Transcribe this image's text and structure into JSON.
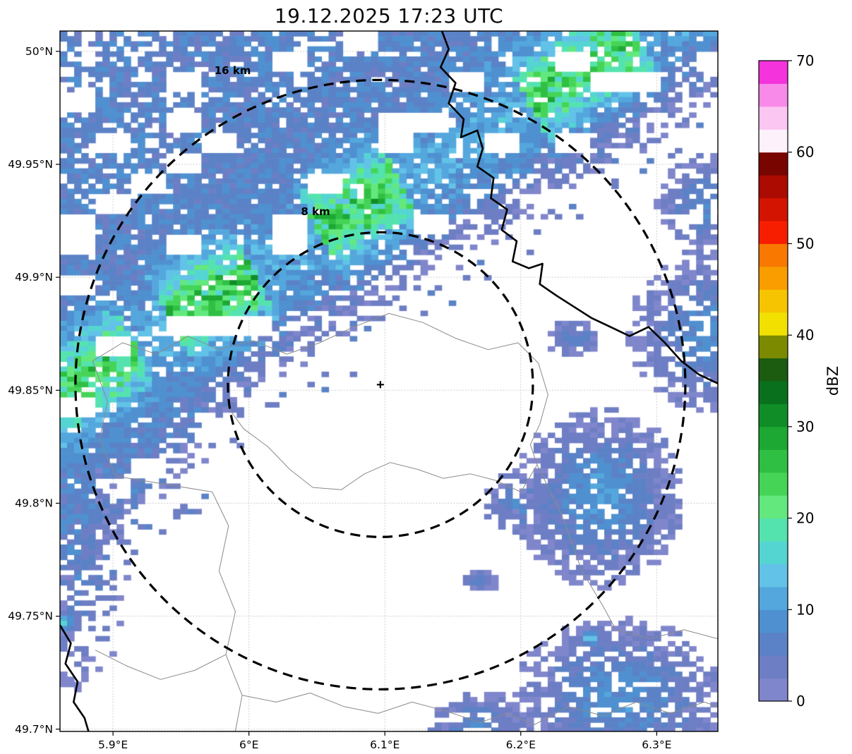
{
  "chart_data": {
    "type": "heatmap",
    "title": "19.12.2025 17:23 UTC",
    "quantity": "radar reflectivity",
    "x_axis": {
      "range": [
        5.861,
        6.345
      ],
      "ticks": [
        {
          "value": 5.9,
          "label": "5.9°E"
        },
        {
          "value": 6.0,
          "label": "6°E"
        },
        {
          "value": 6.1,
          "label": "6.1°E"
        },
        {
          "value": 6.2,
          "label": "6.2°E"
        },
        {
          "value": 6.3,
          "label": "6.3°E"
        }
      ]
    },
    "y_axis": {
      "range": [
        49.699,
        50.009
      ],
      "ticks": [
        {
          "value": 50.0,
          "label": "50°N"
        },
        {
          "value": 49.95,
          "label": "49.95°N"
        },
        {
          "value": 49.9,
          "label": "49.9°N"
        },
        {
          "value": 49.85,
          "label": "49.85°N"
        },
        {
          "value": 49.8,
          "label": "49.8°N"
        },
        {
          "value": 49.75,
          "label": "49.75°N"
        },
        {
          "value": 49.7,
          "label": "49.7°N"
        }
      ]
    },
    "colorbar": {
      "label": "dBZ",
      "range": [
        0,
        70
      ],
      "tick_values": [
        0,
        10,
        20,
        30,
        40,
        50,
        60,
        70
      ],
      "level_step": 2.5,
      "colors": [
        "#8086cb",
        "#6e7ec4",
        "#5b82c6",
        "#4f90d0",
        "#54a7dd",
        "#62c2e7",
        "#55d5d2",
        "#54e3af",
        "#63e87d",
        "#46d457",
        "#2fc043",
        "#1ca833",
        "#108d27",
        "#09711d",
        "#1b5c10",
        "#7c8a00",
        "#f2e100",
        "#f6c400",
        "#f99d00",
        "#f87800",
        "#f71e00",
        "#d31400",
        "#ab0b00",
        "#790500",
        "#fdf1fb",
        "#fbc6f2",
        "#f88ae9",
        "#f433dd"
      ]
    },
    "center_marker": {
      "lon": 6.0967,
      "lat": 49.8525,
      "symbol": "+"
    },
    "range_rings": [
      {
        "radius_km": 8,
        "label": "8 km",
        "label_lonlat": [
          6.049,
          49.9275
        ]
      },
      {
        "radius_km": 16,
        "label": "16 km",
        "label_lonlat": [
          5.988,
          49.99
        ]
      }
    ],
    "field": {
      "cell_dlon": 0.0052,
      "cell_dlat": 0.00225,
      "band": {
        "core_from": [
          5.87,
          49.852
        ],
        "core_to": [
          6.27,
          50.002
        ],
        "base_dbz": 6.5,
        "se_width_base": 0.044,
        "se_width_extra": 0.04,
        "se_width_lon_ref": 6.02,
        "se_width_lon_scale": 0.16,
        "ridge_sigma": 0.013,
        "ridge_amp_default": 5,
        "ridge_hot": [
          [
            -0.03,
            0.035,
            16
          ],
          [
            0.055,
            0.1,
            18
          ],
          [
            0.135,
            0.18,
            17
          ],
          [
            0.25,
            0.31,
            16
          ]
        ],
        "noise_dbz": 5,
        "hole_base": 0.1,
        "hole_nw": 0.27,
        "hole_far_nw": 0.5,
        "hole_edge": 0.35,
        "block_hole_p": 0.12
      },
      "blobs": [
        {
          "c": [
            6.34,
            49.876
          ],
          "sx": 0.02,
          "sy": 0.018,
          "amp": 8.5,
          "cov": 0.7
        },
        {
          "c": [
            6.335,
            49.932
          ],
          "sx": 0.012,
          "sy": 0.012,
          "amp": 7.5,
          "cov": 0.6
        },
        {
          "c": [
            6.258,
            49.803
          ],
          "sx": 0.02,
          "sy": 0.02,
          "amp": 9.5,
          "cov": 0.8
        },
        {
          "c": [
            6.2,
            49.8
          ],
          "sx": 0.01,
          "sy": 0.008,
          "amp": 6.5,
          "cov": 0.7
        },
        {
          "c": [
            6.272,
            49.714
          ],
          "sx": 0.025,
          "sy": 0.018,
          "amp": 9.0,
          "cov": 0.75
        },
        {
          "c": [
            6.17,
            49.7
          ],
          "sx": 0.013,
          "sy": 0.009,
          "amp": 7.5,
          "cov": 0.75
        },
        {
          "c": [
            6.238,
            49.8735
          ],
          "sx": 0.007,
          "sy": 0.0045,
          "amp": 6.5,
          "cov": 0.95
        },
        {
          "c": [
            6.171,
            49.7655
          ],
          "sx": 0.005,
          "sy": 0.0025,
          "amp": 6.0,
          "cov": 1
        },
        {
          "c": [
            5.872,
            49.772
          ],
          "sx": 0.014,
          "sy": 0.03,
          "amp": 6.5,
          "cov": 0.4
        },
        {
          "c": [
            6.2515,
            49.7405
          ],
          "sx": 0.0032,
          "sy": 0.0022,
          "amp": 16,
          "cov": 1
        },
        {
          "c": [
            5.8635,
            49.7475
          ],
          "sx": 0.004,
          "sy": 0.0028,
          "amp": 15,
          "cov": 1
        }
      ]
    },
    "map_layers": {
      "country_borders": [
        [
          [
            6.142,
            50.009
          ],
          [
            6.147,
            50.001
          ],
          [
            6.141,
            49.993
          ],
          [
            6.152,
            49.986
          ],
          [
            6.147,
            49.977
          ],
          [
            6.158,
            49.97
          ],
          [
            6.156,
            49.962
          ],
          [
            6.168,
            49.965
          ],
          [
            6.172,
            49.957
          ],
          [
            6.168,
            49.949
          ],
          [
            6.18,
            49.944
          ],
          [
            6.178,
            49.935
          ],
          [
            6.19,
            49.93
          ],
          [
            6.186,
            49.921
          ],
          [
            6.197,
            49.916
          ],
          [
            6.194,
            49.907
          ],
          [
            6.206,
            49.904
          ],
          [
            6.216,
            49.906
          ],
          [
            6.214,
            49.897
          ],
          [
            6.226,
            49.892
          ],
          [
            6.239,
            49.887
          ],
          [
            6.252,
            49.882
          ],
          [
            6.266,
            49.878
          ],
          [
            6.28,
            49.874
          ],
          [
            6.294,
            49.878
          ],
          [
            6.306,
            49.871
          ],
          [
            6.318,
            49.863
          ],
          [
            6.331,
            49.857
          ],
          [
            6.345,
            49.853
          ]
        ],
        [
          [
            5.861,
            49.746
          ],
          [
            5.869,
            49.738
          ],
          [
            5.865,
            49.729
          ],
          [
            5.874,
            49.721
          ],
          [
            5.871,
            49.712
          ],
          [
            5.879,
            49.705
          ],
          [
            5.882,
            49.699
          ]
        ]
      ],
      "internal_borders": [
        [
          [
            5.885,
            49.863
          ],
          [
            5.907,
            49.871
          ],
          [
            5.932,
            49.866
          ],
          [
            5.955,
            49.874
          ],
          [
            5.978,
            49.868
          ],
          [
            6.003,
            49.872
          ],
          [
            6.028,
            49.866
          ],
          [
            6.052,
            49.871
          ],
          [
            6.077,
            49.878
          ],
          [
            6.103,
            49.884
          ],
          [
            6.128,
            49.88
          ],
          [
            6.152,
            49.873
          ],
          [
            6.176,
            49.868
          ],
          [
            6.198,
            49.871
          ],
          [
            6.213,
            49.862
          ],
          [
            6.22,
            49.848
          ],
          [
            6.214,
            49.835
          ],
          [
            6.207,
            49.826
          ],
          [
            6.212,
            49.817
          ]
        ],
        [
          [
            5.984,
            49.843
          ],
          [
            5.996,
            49.833
          ],
          [
            6.014,
            49.825
          ],
          [
            6.03,
            49.815
          ],
          [
            6.047,
            49.807
          ],
          [
            6.068,
            49.806
          ],
          [
            6.085,
            49.813
          ],
          [
            6.104,
            49.818
          ],
          [
            6.124,
            49.815
          ],
          [
            6.143,
            49.811
          ],
          [
            6.163,
            49.813
          ],
          [
            6.182,
            49.81
          ],
          [
            6.2,
            49.805
          ],
          [
            6.212,
            49.817
          ]
        ],
        [
          [
            5.973,
            49.805
          ],
          [
            5.985,
            49.79
          ],
          [
            5.978,
            49.77
          ],
          [
            5.99,
            49.752
          ],
          [
            5.983,
            49.733
          ],
          [
            5.995,
            49.715
          ],
          [
            5.99,
            49.699
          ]
        ],
        [
          [
            5.887,
            49.735
          ],
          [
            5.91,
            49.728
          ],
          [
            5.935,
            49.722
          ],
          [
            5.96,
            49.726
          ],
          [
            5.983,
            49.733
          ]
        ],
        [
          [
            5.995,
            49.715
          ],
          [
            6.02,
            49.712
          ],
          [
            6.045,
            49.716
          ],
          [
            6.07,
            49.71
          ],
          [
            6.095,
            49.707
          ],
          [
            6.12,
            49.712
          ],
          [
            6.145,
            49.708
          ],
          [
            6.17,
            49.703
          ],
          [
            6.19,
            49.707
          ],
          [
            6.21,
            49.702
          ],
          [
            6.235,
            49.71
          ],
          [
            6.26,
            49.706
          ],
          [
            6.285,
            49.712
          ],
          [
            6.31,
            49.707
          ],
          [
            6.335,
            49.712
          ],
          [
            6.345,
            49.71
          ]
        ],
        [
          [
            6.212,
            49.817
          ],
          [
            6.23,
            49.795
          ],
          [
            6.245,
            49.77
          ],
          [
            6.26,
            49.755
          ],
          [
            6.27,
            49.744
          ],
          [
            6.295,
            49.74
          ],
          [
            6.32,
            49.744
          ],
          [
            6.345,
            49.74
          ]
        ],
        [
          [
            5.885,
            49.863
          ],
          [
            5.896,
            49.845
          ],
          [
            5.89,
            49.828
          ],
          [
            5.902,
            49.812
          ],
          [
            5.973,
            49.805
          ]
        ]
      ]
    }
  }
}
